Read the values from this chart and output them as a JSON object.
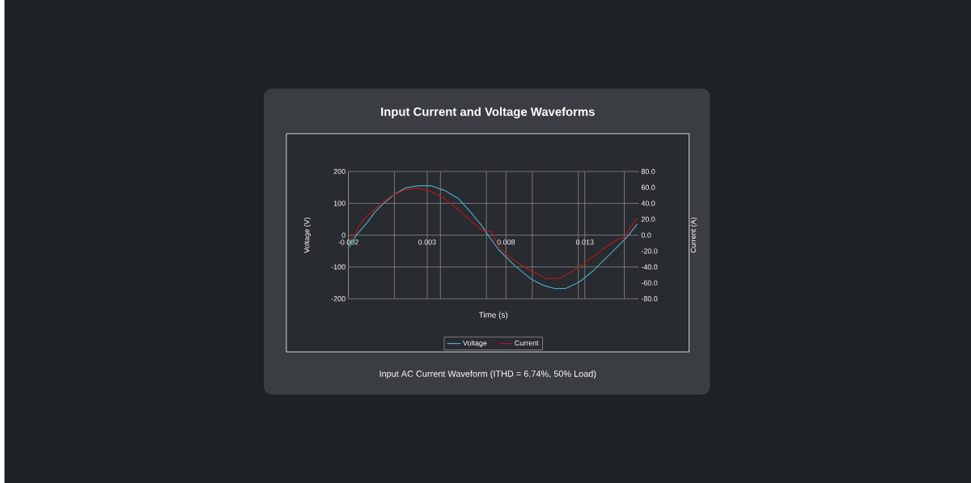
{
  "chart_data": {
    "type": "line",
    "title": "Input Current and Voltage Waveforms",
    "xlabel": "Time (s)",
    "ylabel": "Voltage (V)",
    "y2label": "Current (A)",
    "annotations": [
      "Input AC Current Waveform (ITHD = 6.74%, 50% Load)"
    ],
    "series": [
      {
        "name": "Voltage",
        "color": "#4bacc6",
        "x": [
          -0.00193,
          -0.0015,
          -0.00082,
          -0.00031,
          0.0002,
          0.00088,
          0.00165,
          0.00242,
          0.00327,
          0.00413,
          0.00498,
          0.00583,
          0.00652,
          0.00686,
          0.00754,
          0.00856,
          0.00959,
          0.01044,
          0.01112,
          0.01181,
          0.01266,
          0.01351,
          0.01437,
          0.01522,
          0.01573,
          0.01633
        ],
        "values": [
          -37,
          0,
          39,
          73,
          98,
          127,
          149,
          155,
          155,
          140,
          115,
          68,
          26,
          0,
          -46,
          -96,
          -138,
          -159,
          -168,
          -167,
          -147,
          -113,
          -71,
          -29,
          -3,
          35
        ]
      },
      {
        "name": "Current",
        "color": "#b01818",
        "axis": "y2",
        "x": [
          -0.00193,
          -0.00159,
          -0.00133,
          -0.00082,
          -0.00014,
          0.00071,
          0.00157,
          0.00242,
          0.00311,
          0.00396,
          0.00498,
          0.006,
          0.00652,
          0.00686,
          0.00711,
          0.00754,
          0.00839,
          0.00959,
          0.01061,
          0.01147,
          0.0125,
          0.01351,
          0.01437,
          0.01514,
          0.01548,
          0.01599,
          0.01633
        ],
        "values": [
          -5,
          0,
          12,
          24,
          36,
          49,
          57,
          59,
          56,
          48,
          32,
          14,
          6,
          5,
          4,
          -15,
          -30,
          -45,
          -55,
          -54,
          -42,
          -27,
          -14,
          -5,
          -3,
          12,
          22
        ]
      }
    ],
    "xlim": [
      -0.002,
      0.0164
    ],
    "xticks": [
      -0.002,
      {
        "value": 0.00092,
        "label": null
      },
      0.003,
      {
        "value": 0.00384,
        "label": null
      },
      {
        "value": 0.00676,
        "label": null
      },
      0.008,
      {
        "value": 0.00967,
        "label": null
      },
      {
        "value": 0.01259,
        "label": null
      },
      0.013,
      {
        "value": 0.01551,
        "label": null
      }
    ],
    "ylim": [
      -200,
      200
    ],
    "yticks": [
      -200,
      -100,
      0,
      100,
      200
    ],
    "y2lim": [
      -80,
      80
    ],
    "y2ticks": [
      {
        "value": -80,
        "label": "-80.0"
      },
      {
        "value": -60,
        "label": "-60.0"
      },
      {
        "value": -40,
        "label": "-40.0"
      },
      {
        "value": -20,
        "label": "-20.0"
      },
      {
        "value": 0,
        "label": "0.0"
      },
      {
        "value": 20,
        "label": "20.0"
      },
      {
        "value": 40,
        "label": "40.0"
      },
      {
        "value": 60,
        "label": "60.0"
      },
      {
        "value": 80,
        "label": "80.0"
      }
    ],
    "grid": true,
    "legend": "bottom",
    "marker": "none",
    "line_style": "solid"
  }
}
